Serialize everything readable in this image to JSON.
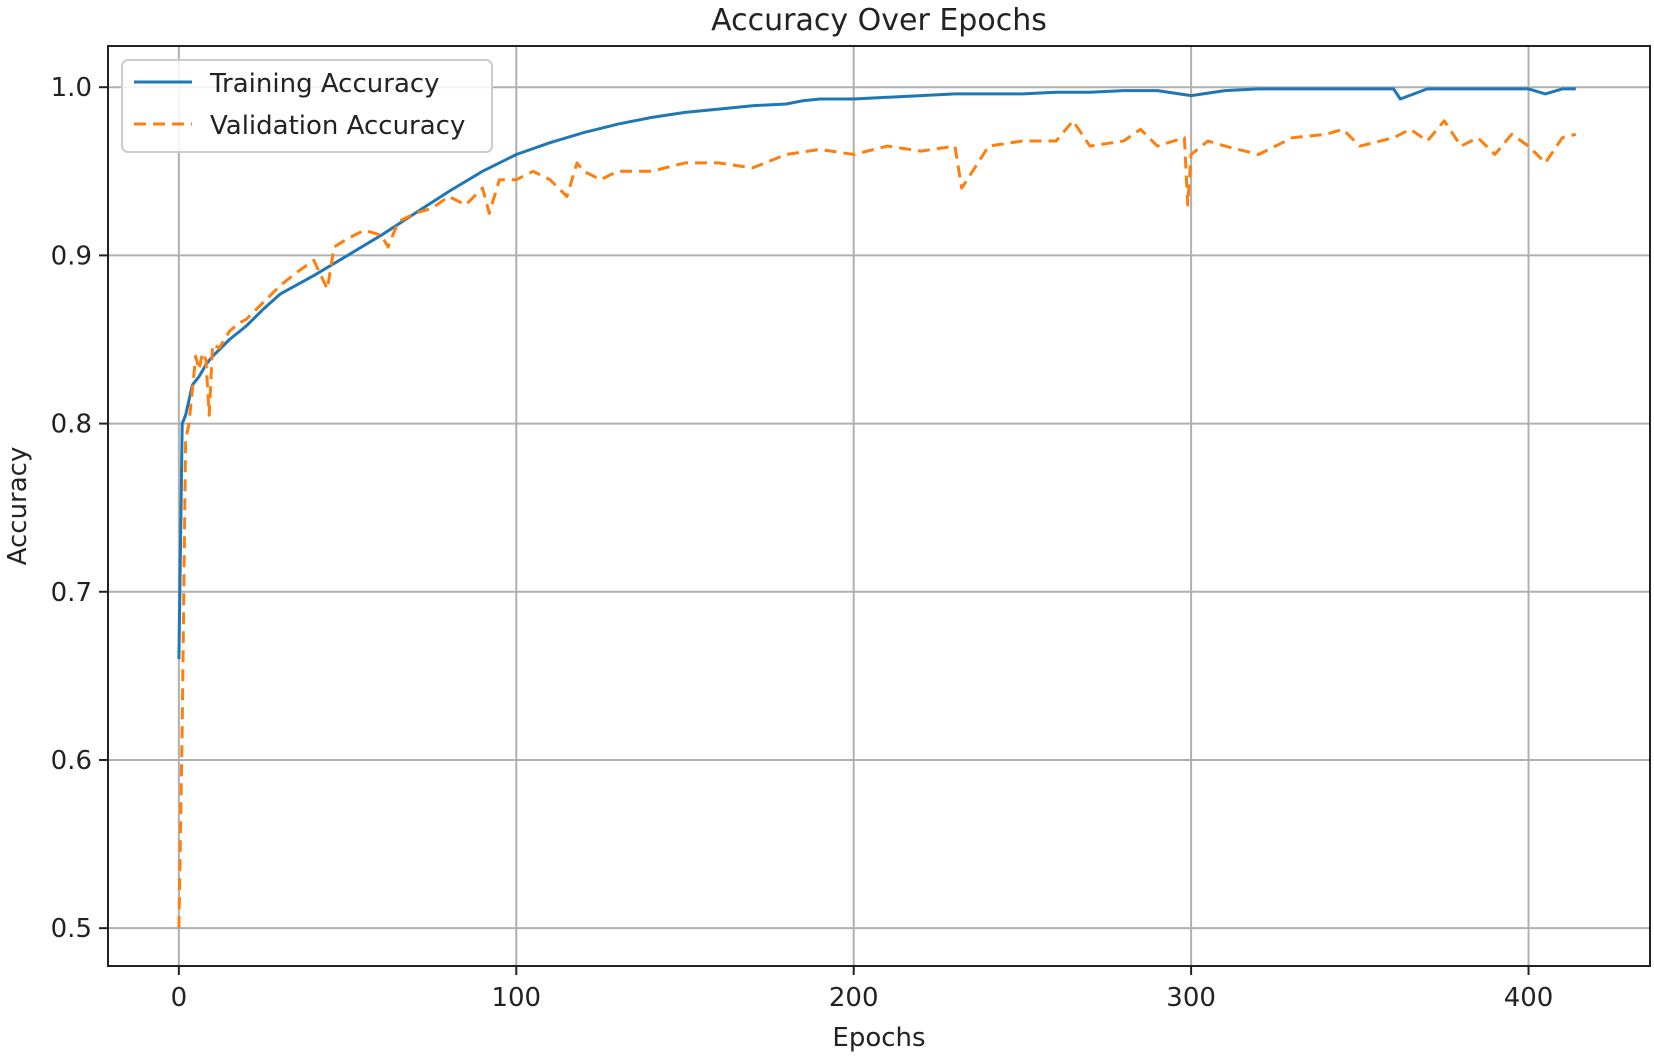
{
  "chart_data": {
    "type": "line",
    "title": "Accuracy Over Epochs",
    "xlabel": "Epochs",
    "ylabel": "Accuracy",
    "xlim": [
      -21,
      436
    ],
    "ylim": [
      0.4775,
      1.0245
    ],
    "x_ticks": [
      0,
      100,
      200,
      300,
      400
    ],
    "y_ticks": [
      0.5,
      0.6,
      0.7,
      0.8,
      0.9,
      1.0
    ],
    "x_tick_labels": [
      "0",
      "100",
      "200",
      "300",
      "400"
    ],
    "y_tick_labels": [
      "0.5",
      "0.6",
      "0.7",
      "0.8",
      "0.9",
      "1.0"
    ],
    "grid": true,
    "legend_position": "top-left",
    "series": [
      {
        "name": "Training Accuracy",
        "color": "#1f77b4",
        "linestyle": "solid",
        "x": [
          0,
          1,
          2,
          4,
          6,
          8,
          10,
          15,
          20,
          25,
          30,
          40,
          50,
          60,
          70,
          80,
          90,
          100,
          110,
          120,
          130,
          140,
          150,
          160,
          170,
          180,
          185,
          190,
          200,
          210,
          220,
          230,
          240,
          250,
          260,
          270,
          280,
          290,
          300,
          310,
          320,
          330,
          340,
          350,
          360,
          362,
          370,
          380,
          390,
          400,
          405,
          410,
          414
        ],
        "values": [
          0.66,
          0.8,
          0.805,
          0.823,
          0.828,
          0.835,
          0.84,
          0.85,
          0.858,
          0.868,
          0.877,
          0.888,
          0.9,
          0.912,
          0.925,
          0.938,
          0.95,
          0.96,
          0.967,
          0.973,
          0.978,
          0.982,
          0.985,
          0.987,
          0.989,
          0.99,
          0.992,
          0.993,
          0.993,
          0.994,
          0.995,
          0.996,
          0.996,
          0.996,
          0.997,
          0.997,
          0.998,
          0.998,
          0.995,
          0.998,
          0.999,
          0.999,
          0.999,
          0.999,
          0.999,
          0.993,
          0.999,
          0.999,
          0.999,
          0.999,
          0.996,
          0.999,
          0.999
        ]
      },
      {
        "name": "Validation Accuracy",
        "color": "#ff7f0e",
        "linestyle": "dashed",
        "x": [
          0,
          1,
          2,
          3,
          4,
          5,
          6,
          7,
          8,
          9,
          10,
          12,
          15,
          18,
          20,
          25,
          30,
          35,
          40,
          44,
          46,
          50,
          55,
          60,
          62,
          65,
          70,
          75,
          80,
          85,
          90,
          92,
          95,
          100,
          105,
          110,
          115,
          118,
          120,
          125,
          130,
          140,
          150,
          160,
          170,
          180,
          190,
          200,
          210,
          220,
          230,
          232,
          240,
          250,
          260,
          265,
          270,
          280,
          285,
          290,
          298,
          299,
          300,
          305,
          310,
          320,
          330,
          340,
          345,
          350,
          360,
          365,
          370,
          375,
          380,
          385,
          390,
          395,
          400,
          405,
          410,
          414
        ],
        "values": [
          0.5,
          0.62,
          0.79,
          0.8,
          0.82,
          0.84,
          0.832,
          0.842,
          0.838,
          0.805,
          0.847,
          0.845,
          0.855,
          0.86,
          0.862,
          0.872,
          0.882,
          0.89,
          0.897,
          0.88,
          0.905,
          0.91,
          0.915,
          0.912,
          0.905,
          0.92,
          0.925,
          0.928,
          0.935,
          0.93,
          0.94,
          0.925,
          0.945,
          0.945,
          0.95,
          0.945,
          0.935,
          0.955,
          0.95,
          0.945,
          0.95,
          0.95,
          0.955,
          0.955,
          0.952,
          0.96,
          0.963,
          0.96,
          0.965,
          0.962,
          0.965,
          0.94,
          0.965,
          0.968,
          0.968,
          0.98,
          0.965,
          0.968,
          0.975,
          0.965,
          0.97,
          0.93,
          0.96,
          0.968,
          0.965,
          0.96,
          0.97,
          0.972,
          0.975,
          0.965,
          0.97,
          0.975,
          0.968,
          0.98,
          0.965,
          0.97,
          0.96,
          0.972,
          0.965,
          0.955,
          0.97,
          0.972
        ]
      }
    ]
  }
}
